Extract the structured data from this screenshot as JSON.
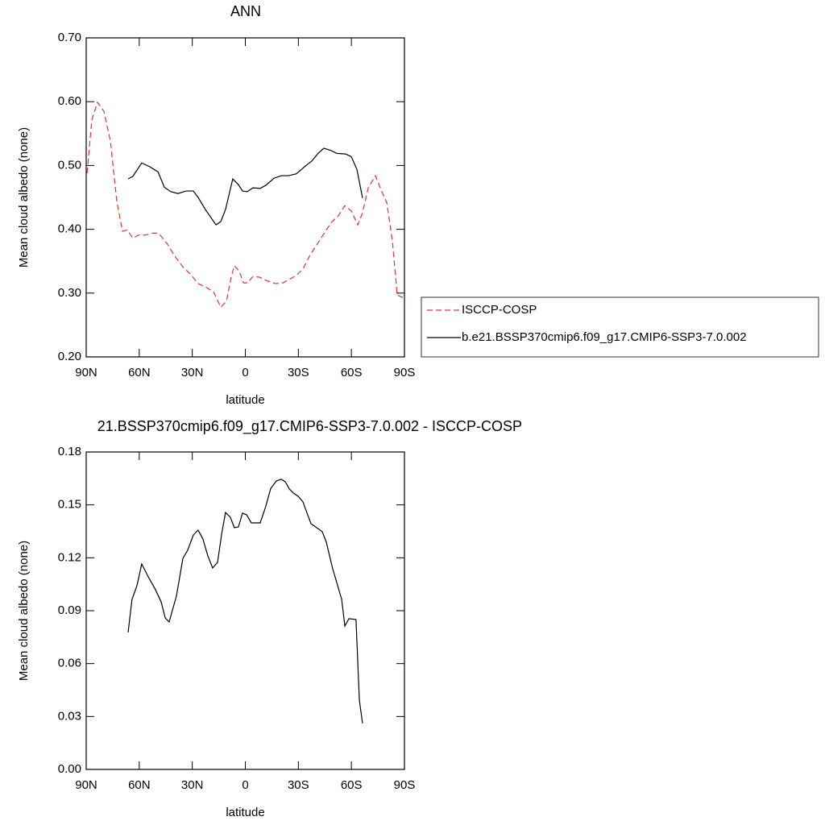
{
  "chart_data": [
    {
      "type": "line",
      "title": "ANN",
      "xlabel": "latitude",
      "ylabel": "Mean cloud albedo (none)",
      "xlim": [
        90,
        -90
      ],
      "xticks": [
        {
          "value": 90,
          "label": "90N"
        },
        {
          "value": 60,
          "label": "60N"
        },
        {
          "value": 30,
          "label": "30N"
        },
        0,
        {
          "value": -30,
          "label": "30S"
        },
        {
          "value": -60,
          "label": "60S"
        },
        {
          "value": -90,
          "label": "90S"
        }
      ],
      "ylim": [
        0.2,
        0.7
      ],
      "yticks": [
        {
          "value": 0.2,
          "label": "0.20"
        },
        {
          "value": 0.3,
          "label": "0.30"
        },
        {
          "value": 0.4,
          "label": "0.40"
        },
        {
          "value": 0.5,
          "label": "0.50"
        },
        {
          "value": 0.6,
          "label": "0.60"
        },
        {
          "value": 0.7,
          "label": "0.70"
        }
      ],
      "series": [
        {
          "name": "ISCCP-COSP",
          "color": "#e8312f",
          "dash": true,
          "x": [
            89.5,
            86.8,
            83.6,
            80,
            76.3,
            72.7,
            69.5,
            66.8,
            63.6,
            60.4,
            56.7,
            52.2,
            49,
            44.4,
            39.9,
            35.3,
            30.8,
            26.7,
            22.1,
            18,
            13.9,
            10.7,
            8,
            6.2,
            3.4,
            1.1,
            -1.1,
            -4.3,
            -8,
            -12.5,
            -17.1,
            -21.2,
            -25.3,
            -29.4,
            -32.6,
            -36.7,
            -41.2,
            -45.3,
            -49,
            -52.6,
            -56.2,
            -59.9,
            -63.6,
            -66.3,
            -69.5,
            -73.6,
            -77.2,
            -80,
            -83.2,
            -85.9,
            -89.1
          ],
          "values": [
            0.488,
            0.572,
            0.599,
            0.585,
            0.538,
            0.444,
            0.397,
            0.399,
            0.386,
            0.391,
            0.391,
            0.394,
            0.394,
            0.378,
            0.358,
            0.341,
            0.329,
            0.315,
            0.309,
            0.302,
            0.278,
            0.287,
            0.325,
            0.343,
            0.334,
            0.316,
            0.316,
            0.326,
            0.325,
            0.319,
            0.315,
            0.316,
            0.322,
            0.329,
            0.338,
            0.36,
            0.379,
            0.397,
            0.412,
            0.421,
            0.437,
            0.429,
            0.407,
            0.426,
            0.465,
            0.484,
            0.459,
            0.442,
            0.381,
            0.297,
            0.293
          ]
        },
        {
          "name": "b.e21.BSSP370cmip6.f09_g17.CMIP6-SSP3-7.0.002",
          "color": "#000000",
          "dash": false,
          "x": [
            66.3,
            63.6,
            58.6,
            54,
            49.4,
            45.8,
            42.2,
            38.1,
            33.5,
            29.4,
            26.7,
            22.6,
            16.6,
            13.9,
            11.2,
            7.1,
            3.9,
            1.6,
            -1.1,
            -4.3,
            -8.4,
            -11.6,
            -16.2,
            -20.3,
            -24.4,
            -28.9,
            -33.5,
            -37.6,
            -41.2,
            -44.4,
            -48.1,
            -51.7,
            -56.7,
            -59.9,
            -63.1,
            -66.3
          ],
          "values": [
            0.479,
            0.483,
            0.504,
            0.498,
            0.49,
            0.466,
            0.459,
            0.456,
            0.46,
            0.46,
            0.45,
            0.431,
            0.407,
            0.412,
            0.431,
            0.479,
            0.47,
            0.46,
            0.459,
            0.465,
            0.464,
            0.469,
            0.48,
            0.484,
            0.484,
            0.487,
            0.498,
            0.507,
            0.519,
            0.527,
            0.524,
            0.519,
            0.518,
            0.514,
            0.494,
            0.449
          ]
        }
      ]
    },
    {
      "type": "line",
      "title": "21.BSSP370cmip6.f09_g17.CMIP6-SSP3-7.0.002 - ISCCP-COSP",
      "xlabel": "latitude",
      "ylabel": "Mean cloud albedo (none)",
      "xlim": [
        90,
        -90
      ],
      "xticks": [
        {
          "value": 90,
          "label": "90N"
        },
        {
          "value": 60,
          "label": "60N"
        },
        {
          "value": 30,
          "label": "30N"
        },
        0,
        {
          "value": -30,
          "label": "30S"
        },
        {
          "value": -60,
          "label": "60S"
        },
        {
          "value": -90,
          "label": "90S"
        }
      ],
      "ylim": [
        0,
        0.18
      ],
      "yticks": [
        {
          "value": 0,
          "label": "0.00"
        },
        0.03,
        0.06,
        0.09,
        0.12,
        0.15,
        0.18
      ],
      "color": "#000000",
      "x": [
        66.3,
        64.1,
        61.3,
        58.6,
        54.9,
        50.8,
        47.6,
        45.3,
        43.1,
        39,
        35.3,
        32.6,
        29.4,
        26.7,
        24,
        21.2,
        18.5,
        15.7,
        13.4,
        11.2,
        8.5,
        6.2,
        3.9,
        1.6,
        -0.7,
        -3.4,
        -8.4,
        -11.2,
        -14.4,
        -17.6,
        -20.3,
        -22.6,
        -24.9,
        -27.2,
        -29.9,
        -32.6,
        -34.9,
        -37.2,
        -40.3,
        -43.5,
        -45.8,
        -49.4,
        -51.7,
        -54.5,
        -56.3,
        -58.6,
        -62.6,
        -64.5,
        -66.3
      ],
      "values": [
        0.0777,
        0.0964,
        0.1042,
        0.1165,
        0.1092,
        0.1019,
        0.095,
        0.0859,
        0.0836,
        0.0982,
        0.1197,
        0.1243,
        0.1329,
        0.1357,
        0.1307,
        0.1211,
        0.1142,
        0.1174,
        0.1334,
        0.1457,
        0.143,
        0.1371,
        0.1375,
        0.1453,
        0.1444,
        0.1398,
        0.1398,
        0.148,
        0.1594,
        0.1636,
        0.1645,
        0.1631,
        0.159,
        0.1567,
        0.1549,
        0.1517,
        0.1453,
        0.1393,
        0.1371,
        0.1348,
        0.1289,
        0.1138,
        0.106,
        0.0964,
        0.0813,
        0.0855,
        0.085,
        0.0393,
        0.0261
      ]
    }
  ]
}
